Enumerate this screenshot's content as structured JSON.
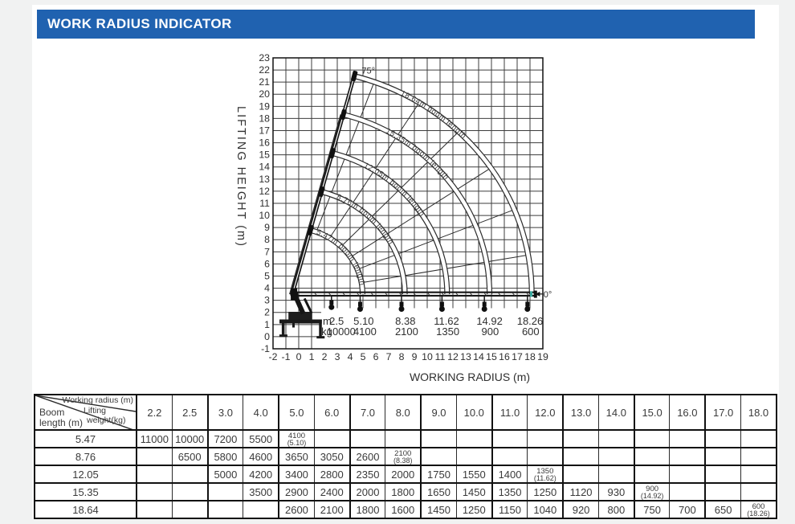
{
  "header": {
    "title": "WORK RADIUS INDICATOR",
    "bar_color": "#2062b0"
  },
  "chart_data": {
    "type": "line",
    "title": "",
    "xlabel": "WORKING RADIUS (m)",
    "ylabel": "LIFTING HEIGHT (m)",
    "xlim": [
      -2,
      19
    ],
    "ylim": [
      -1,
      23
    ],
    "x_ticks": [
      -2,
      -1,
      0,
      1,
      2,
      3,
      4,
      5,
      6,
      7,
      8,
      9,
      10,
      11,
      12,
      13,
      14,
      15,
      16,
      17,
      18,
      19
    ],
    "y_ticks": [
      -1,
      0,
      1,
      2,
      3,
      4,
      5,
      6,
      7,
      8,
      9,
      10,
      11,
      12,
      13,
      14,
      15,
      16,
      17,
      18,
      19,
      20,
      21,
      22,
      23
    ],
    "grid": true,
    "pivot": {
      "x": -0.5,
      "y": 3.5
    },
    "max_angle_label": "75°",
    "min_angle_label": "0°",
    "boom_arcs": [
      {
        "radius": 5.47,
        "label": "5.47m boom length"
      },
      {
        "radius": 8.76,
        "label": "8.76m boom length"
      },
      {
        "radius": 12.05,
        "label": "12.05m boom length"
      },
      {
        "radius": 15.35,
        "label": "15.35m boom length"
      },
      {
        "radius": 18.64,
        "label": "18.64m boom length"
      }
    ],
    "radial_guide_angles_deg": [
      10,
      22,
      34,
      46,
      58,
      70
    ],
    "capacity_annotations": {
      "m_label": "m",
      "kg_label": "kg",
      "entries": [
        {
          "radius_m": "2.5",
          "capacity_kg": "10000"
        },
        {
          "radius_m": "5.10",
          "capacity_kg": "4100"
        },
        {
          "radius_m": "8.38",
          "capacity_kg": "2100"
        },
        {
          "radius_m": "11.62",
          "capacity_kg": "1350"
        },
        {
          "radius_m": "14.92",
          "capacity_kg": "900"
        },
        {
          "radius_m": "18.26",
          "capacity_kg": "600"
        }
      ]
    },
    "line_color": "#2b2b2b",
    "accent_color": "#3aa99f"
  },
  "table": {
    "corner": {
      "top_label": "Working radius (m)",
      "mid_label_1": "Lifting",
      "mid_label_2": "weight(kg)",
      "bottom_label_1": "Boom",
      "bottom_label_2": "length (m)"
    },
    "columns": [
      "2.2",
      "2.5",
      "3.0",
      "4.0",
      "5.0",
      "6.0",
      "7.0",
      "8.0",
      "9.0",
      "10.0",
      "11.0",
      "12.0",
      "13.0",
      "14.0",
      "15.0",
      "16.0",
      "17.0",
      "18.0"
    ],
    "rows": [
      {
        "boom": "5.47",
        "cells": [
          "11000",
          "10000",
          "7200",
          "5500",
          {
            "kg": "4100",
            "at": "(5.10)"
          },
          "",
          "",
          "",
          "",
          "",
          "",
          "",
          "",
          "",
          "",
          "",
          "",
          ""
        ]
      },
      {
        "boom": "8.76",
        "cells": [
          "",
          "6500",
          "5800",
          "4600",
          "3650",
          "3050",
          "2600",
          {
            "kg": "2100",
            "at": "(8.38)"
          },
          "",
          "",
          "",
          "",
          "",
          "",
          "",
          "",
          "",
          ""
        ]
      },
      {
        "boom": "12.05",
        "cells": [
          "",
          "",
          "5000",
          "4200",
          "3400",
          "2800",
          "2350",
          "2000",
          "1750",
          "1550",
          "1400",
          {
            "kg": "1350",
            "at": "(11.62)"
          },
          "",
          "",
          "",
          "",
          "",
          ""
        ]
      },
      {
        "boom": "15.35",
        "cells": [
          "",
          "",
          "",
          "3500",
          "2900",
          "2400",
          "2000",
          "1800",
          "1650",
          "1450",
          "1350",
          "1250",
          "1120",
          "930",
          {
            "kg": "900",
            "at": "(14.92)"
          },
          "",
          "",
          ""
        ]
      },
      {
        "boom": "18.64",
        "cells": [
          "",
          "",
          "",
          "",
          "2600",
          "2100",
          "1800",
          "1600",
          "1450",
          "1250",
          "1150",
          "1040",
          "920",
          "800",
          "750",
          "700",
          "650",
          {
            "kg": "600",
            "at": "(18.26)"
          }
        ]
      }
    ]
  }
}
